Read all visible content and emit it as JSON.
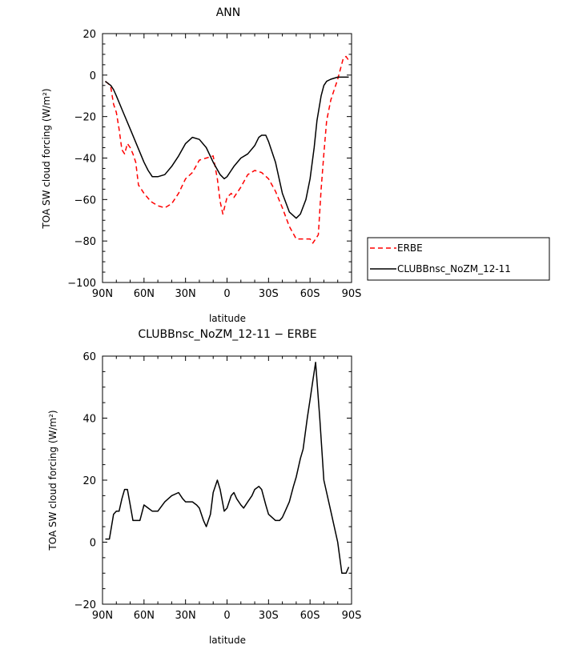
{
  "chart_data": [
    {
      "type": "line",
      "title": "ANN",
      "xlabel": "latitude",
      "ylabel": "TOA SW cloud forcing (W/m²)",
      "x_tick_labels": [
        "90N",
        "60N",
        "30N",
        "0",
        "30S",
        "60S",
        "90S"
      ],
      "xlim": [
        90,
        -90
      ],
      "ylim": [
        -100,
        20
      ],
      "y_ticks": [
        20,
        0,
        -20,
        -40,
        -60,
        -80,
        -100
      ],
      "legend_position": "right",
      "series": [
        {
          "name": "ERBE",
          "color": "#ff0000",
          "dash": "dashed",
          "x": [
            88,
            86,
            84,
            82,
            80,
            78,
            76,
            74,
            72,
            70,
            68,
            66,
            64,
            62,
            60,
            55,
            50,
            45,
            40,
            35,
            30,
            25,
            20,
            15,
            10,
            7,
            5,
            3,
            0,
            -3,
            -5,
            -10,
            -15,
            -20,
            -25,
            -30,
            -35,
            -40,
            -45,
            -50,
            -55,
            -60,
            -62,
            -64,
            -66,
            -68,
            -70,
            -72,
            -75,
            -80,
            -84,
            -86,
            -88
          ],
          "y": [
            -3,
            -4,
            -6,
            -14,
            -18,
            -26,
            -36,
            -38,
            -33,
            -35,
            -38,
            -42,
            -53,
            -55,
            -57,
            -61,
            -63,
            -64,
            -62,
            -57,
            -50,
            -47,
            -41,
            -40,
            -39,
            -50,
            -61,
            -67,
            -59,
            -57,
            -59,
            -54,
            -48,
            -46,
            -47,
            -50,
            -56,
            -64,
            -73,
            -79,
            -79,
            -79,
            -81,
            -79,
            -77,
            -55,
            -38,
            -22,
            -12,
            -2,
            8,
            9,
            7
          ]
        },
        {
          "name": "CLUBBnsc_NoZM_12-11",
          "color": "#000000",
          "dash": "solid",
          "x": [
            88,
            86,
            84,
            82,
            80,
            75,
            70,
            65,
            60,
            57,
            54,
            50,
            45,
            40,
            35,
            30,
            25,
            20,
            15,
            10,
            5,
            2,
            0,
            -3,
            -5,
            -10,
            -15,
            -20,
            -23,
            -25,
            -28,
            -30,
            -35,
            -40,
            -45,
            -50,
            -53,
            -57,
            -60,
            -63,
            -65,
            -68,
            -70,
            -72,
            -75,
            -80,
            -85,
            -88
          ],
          "y": [
            -3,
            -4,
            -5,
            -7,
            -10,
            -18,
            -26,
            -34,
            -42,
            -46,
            -49,
            -49,
            -48,
            -44,
            -39,
            -33,
            -30,
            -31,
            -35,
            -42,
            -48,
            -50,
            -49,
            -46,
            -44,
            -40,
            -38,
            -34,
            -30,
            -29,
            -29,
            -32,
            -42,
            -57,
            -66,
            -69,
            -67,
            -60,
            -50,
            -35,
            -22,
            -10,
            -5,
            -3,
            -2,
            -1,
            -1,
            -1
          ]
        }
      ]
    },
    {
      "type": "line",
      "title": "CLUBBnsc_NoZM_12-11 − ERBE",
      "xlabel": "latitude",
      "ylabel": "TOA SW cloud forcing (W/m²)",
      "x_tick_labels": [
        "90N",
        "60N",
        "30N",
        "0",
        "30S",
        "60S",
        "90S"
      ],
      "xlim": [
        90,
        -90
      ],
      "ylim": [
        -20,
        60
      ],
      "y_ticks": [
        60,
        40,
        20,
        0,
        -20
      ],
      "series": [
        {
          "color": "#000000",
          "dash": "solid",
          "x": [
            88,
            85,
            82,
            80,
            78,
            76,
            74,
            72,
            70,
            68,
            65,
            63,
            60,
            57,
            54,
            50,
            45,
            40,
            35,
            32,
            30,
            25,
            22,
            20,
            17,
            15,
            12,
            10,
            7,
            5,
            2,
            0,
            -3,
            -5,
            -7,
            -10,
            -12,
            -15,
            -18,
            -20,
            -23,
            -25,
            -28,
            -30,
            -35,
            -38,
            -40,
            -42,
            -45,
            -48,
            -50,
            -53,
            -55,
            -58,
            -60,
            -62,
            -64,
            -67,
            -70,
            -75,
            -80,
            -83,
            -86,
            -88
          ],
          "y": [
            1,
            1,
            9,
            10,
            10,
            14,
            17,
            17,
            12,
            7,
            7,
            7,
            12,
            11,
            10,
            10,
            13,
            15,
            16,
            14,
            13,
            13,
            12,
            11,
            7,
            5,
            9,
            16,
            20,
            17,
            10,
            11,
            15,
            16,
            14,
            12,
            11,
            13,
            15,
            17,
            18,
            17,
            12,
            9,
            7,
            7,
            8,
            10,
            13,
            18,
            21,
            27,
            30,
            40,
            46,
            52,
            58,
            40,
            20,
            10,
            0,
            -10,
            -10,
            -8
          ]
        }
      ]
    }
  ]
}
